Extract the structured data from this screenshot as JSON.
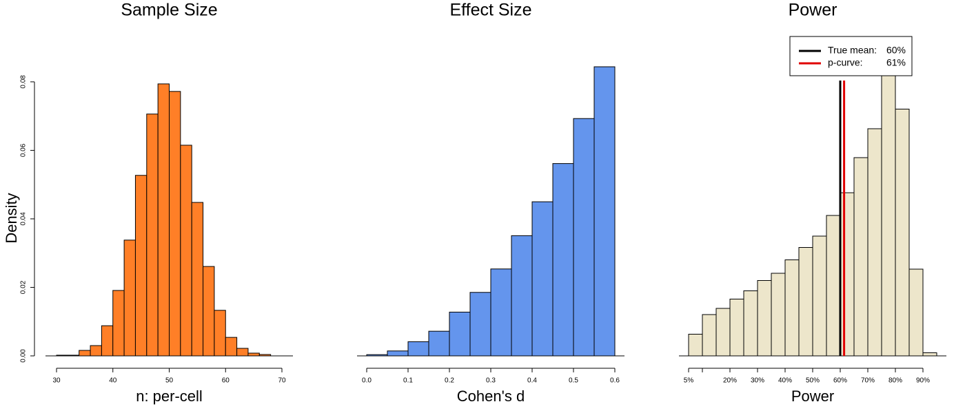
{
  "chart_data": [
    {
      "type": "histogram",
      "title": "Sample Size",
      "xlabel": "n: per-cell",
      "ylabel": "Density",
      "color": "#ff7f27",
      "bins": [
        30,
        32,
        34,
        36,
        38,
        40,
        42,
        44,
        46,
        48,
        50,
        52,
        54,
        56,
        58,
        60,
        62,
        64,
        66,
        68
      ],
      "values": [
        0.0002,
        0.0002,
        0.0016,
        0.003,
        0.0088,
        0.0191,
        0.0338,
        0.0527,
        0.0706,
        0.0794,
        0.0772,
        0.0615,
        0.0448,
        0.0261,
        0.0133,
        0.0054,
        0.0022,
        0.0008,
        0.0004
      ],
      "xlim": [
        30,
        70
      ],
      "xticks": [
        30,
        40,
        50,
        60,
        70
      ],
      "ylim": [
        0,
        0.0844
      ],
      "yticks": [
        {
          "value": 0,
          "label": "0.00"
        },
        0.02,
        0.04,
        0.06,
        0.08
      ]
    },
    {
      "type": "histogram",
      "title": "Effect Size",
      "xlabel": "Cohen's d",
      "color": "#6495ed",
      "bins": [
        0,
        0.05,
        0.1,
        0.15,
        0.2,
        0.25,
        0.3,
        0.35,
        0.4,
        0.45,
        0.5,
        0.55,
        0.6
      ],
      "values": [
        0.02,
        0.08,
        0.23,
        0.4,
        0.71,
        1.03,
        1.41,
        1.95,
        2.5,
        3.12,
        3.85,
        4.69
      ],
      "xlim": [
        0,
        0.6
      ],
      "xticks": [
        {
          "value": 0,
          "label": "0.0"
        },
        0.1,
        0.2,
        0.3,
        0.4,
        0.5,
        0.6
      ],
      "ylim": [
        0,
        4.69
      ]
    },
    {
      "type": "histogram",
      "title": "Power",
      "xlabel": "Power",
      "color": "#ede6cb",
      "bins": [
        5,
        10,
        15,
        20,
        25,
        30,
        35,
        40,
        45,
        50,
        55,
        60,
        65,
        70,
        75,
        80,
        85,
        90,
        95
      ],
      "values": [
        0.21,
        0.4,
        0.46,
        0.55,
        0.63,
        0.73,
        0.8,
        0.93,
        1.05,
        1.16,
        1.36,
        1.58,
        1.92,
        2.2,
        2.75,
        2.39,
        0.84,
        0.03
      ],
      "xlim": [
        5,
        95
      ],
      "xticks": [
        {
          "value": 5,
          "label": "5%"
        },
        {
          "value": 10,
          "label": null
        },
        {
          "value": 20,
          "label": "20%"
        },
        {
          "value": 30,
          "label": "30%"
        },
        {
          "value": 40,
          "label": "40%"
        },
        {
          "value": 50,
          "label": "50%"
        },
        {
          "value": 60,
          "label": "60%"
        },
        {
          "value": 70,
          "label": "70%"
        },
        {
          "value": 80,
          "label": "80%"
        },
        {
          "value": 90,
          "label": "90%"
        }
      ],
      "ylim": [
        0,
        2.8
      ],
      "vlines": [
        {
          "name": "True mean:",
          "value": 60,
          "label": "60%",
          "color": "#000000"
        },
        {
          "name": "p-curve:",
          "value": 61.4,
          "label": "61%",
          "color": "#e00000"
        }
      ]
    }
  ]
}
